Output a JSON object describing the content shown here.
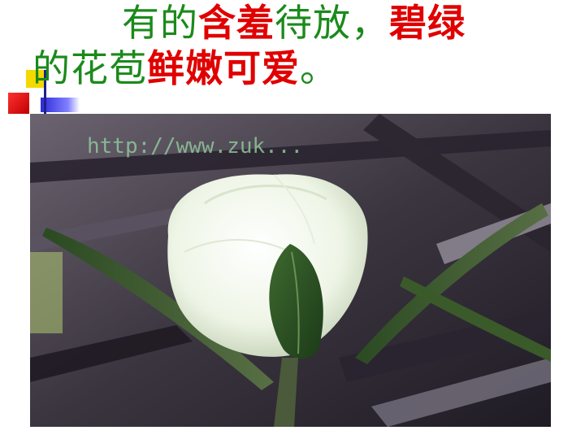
{
  "slide": {
    "line1": {
      "seg1": "有的",
      "seg2": "含羞",
      "seg3": "待放，",
      "seg4": "碧绿"
    },
    "line2": {
      "seg1": "的花苞",
      "seg2": "鲜嫩可爱",
      "seg3": "。"
    },
    "photo": {
      "watermark": "http://www.zuk..."
    }
  },
  "colors": {
    "text_green": "#1b8a1b",
    "text_red": "#e00000"
  }
}
